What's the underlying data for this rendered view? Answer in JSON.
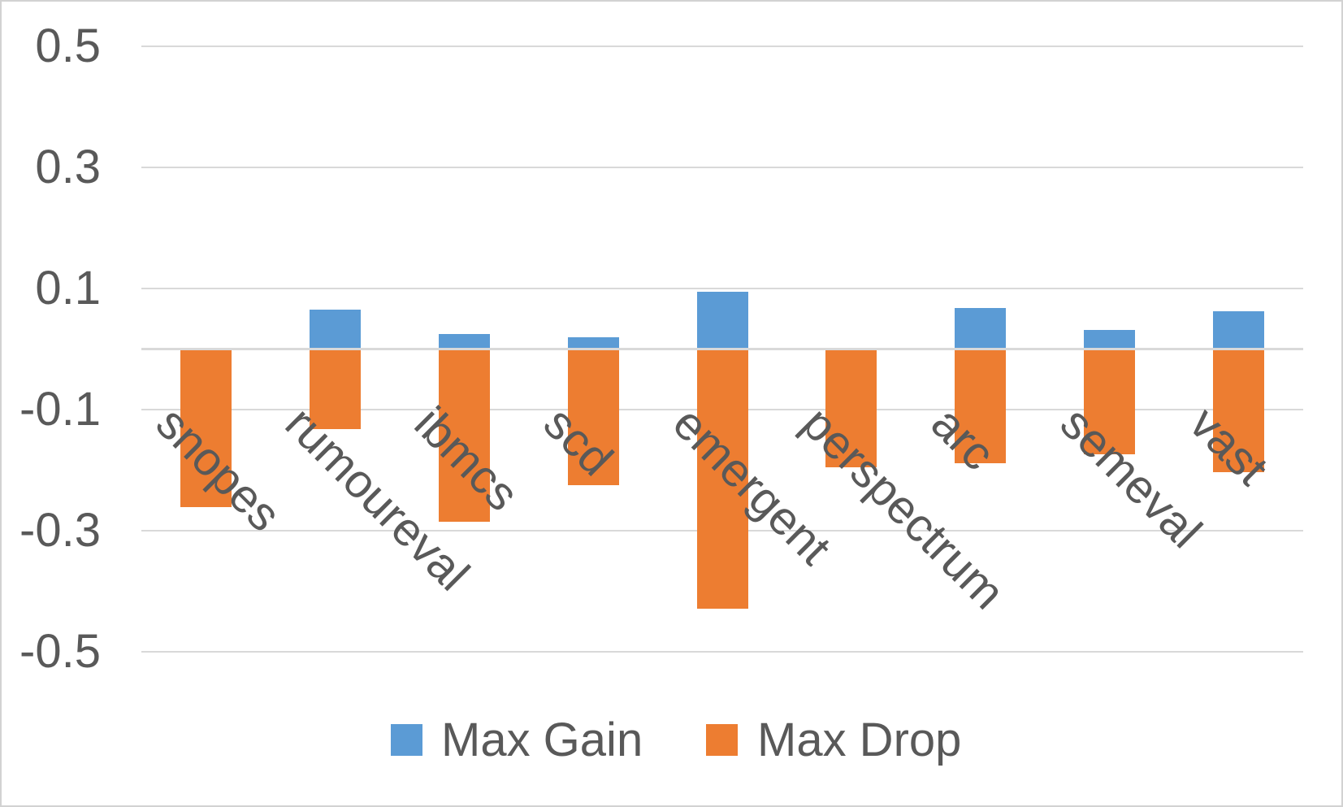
{
  "chart_data": {
    "type": "bar",
    "title": "",
    "xlabel": "",
    "ylabel": "",
    "categories": [
      "snopes",
      "rumoureval",
      "ibmcs",
      "scd",
      "emergent",
      "perspectrum",
      "arc",
      "semeval",
      "vast"
    ],
    "series": [
      {
        "name": "Max Gain",
        "color": "#5B9BD5",
        "values": [
          0,
          0.065,
          0.025,
          0.02,
          0.095,
          0,
          0.068,
          0.032,
          0.062
        ]
      },
      {
        "name": "Max Drop",
        "color": "#ED7D31",
        "values": [
          -0.261,
          -0.132,
          -0.285,
          -0.225,
          -0.429,
          -0.195,
          -0.189,
          -0.174,
          -0.203
        ]
      }
    ],
    "ylim": [
      -0.5,
      0.5
    ],
    "yticks": [
      0.5,
      0.3,
      0.1,
      -0.1,
      -0.3,
      -0.5
    ],
    "ytick_labels": [
      "0.5",
      "0.3",
      "0.1",
      "-0.1",
      "-0.3",
      "-0.5"
    ],
    "grid": true,
    "zero_axis_line": true,
    "legend_position": "bottom"
  },
  "legend": {
    "items": [
      {
        "label": "Max Gain",
        "color": "#5B9BD5"
      },
      {
        "label": "Max Drop",
        "color": "#ED7D31"
      }
    ]
  },
  "styles": {
    "text_color": "#595959",
    "gridline_color": "#D9D9D9",
    "axis_line_color": "#D9D9D9",
    "background": "#FFFFFF",
    "border_color": "#D2D2D2"
  }
}
